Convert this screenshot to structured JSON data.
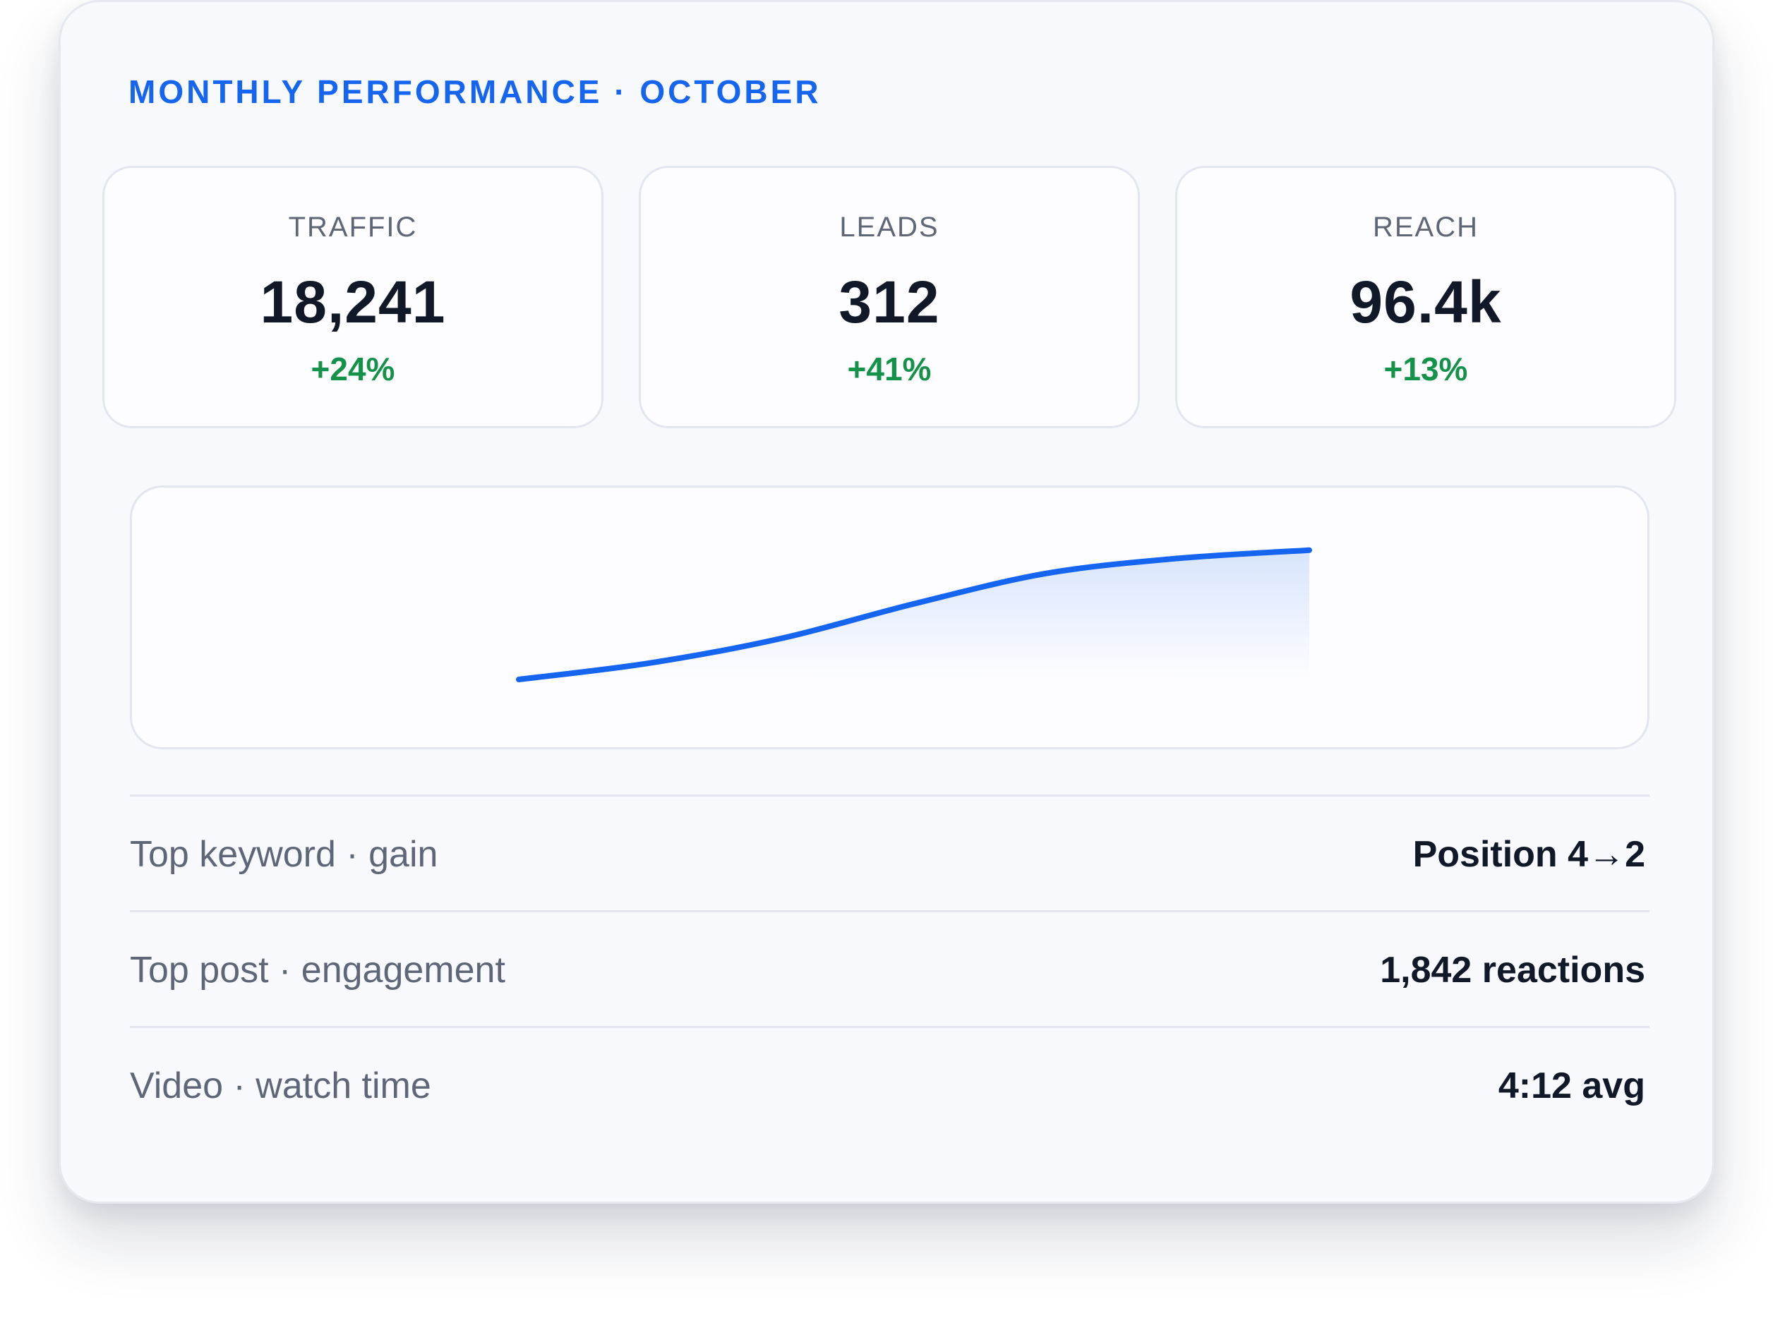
{
  "header": {
    "title": "MONTHLY PERFORMANCE · OCTOBER"
  },
  "stats": [
    {
      "label": "TRAFFIC",
      "value": "18,241",
      "change": "+24%"
    },
    {
      "label": "LEADS",
      "value": "312",
      "change": "+41%"
    },
    {
      "label": "REACH",
      "value": "96.4k",
      "change": "+13%"
    }
  ],
  "colors": {
    "accent": "#1565f0",
    "positive": "#15924a",
    "text_primary": "#111827",
    "text_secondary": "#5e6677"
  },
  "chart_data": {
    "type": "area",
    "title": "",
    "xlabel": "",
    "ylabel": "",
    "grid": false,
    "legend": "none",
    "x": [
      0,
      1,
      2,
      3,
      4,
      5,
      6
    ],
    "series": [
      {
        "values": [
          0,
          0.12,
          0.3,
          0.55,
          0.77,
          0.88,
          0.94
        ]
      }
    ],
    "ylim": [
      0,
      1
    ]
  },
  "details": [
    {
      "label": "Top keyword · gain",
      "value": "Position 4→2"
    },
    {
      "label": "Top post · engagement",
      "value": "1,842 reactions"
    },
    {
      "label": "Video · watch time",
      "value": "4:12 avg"
    }
  ]
}
